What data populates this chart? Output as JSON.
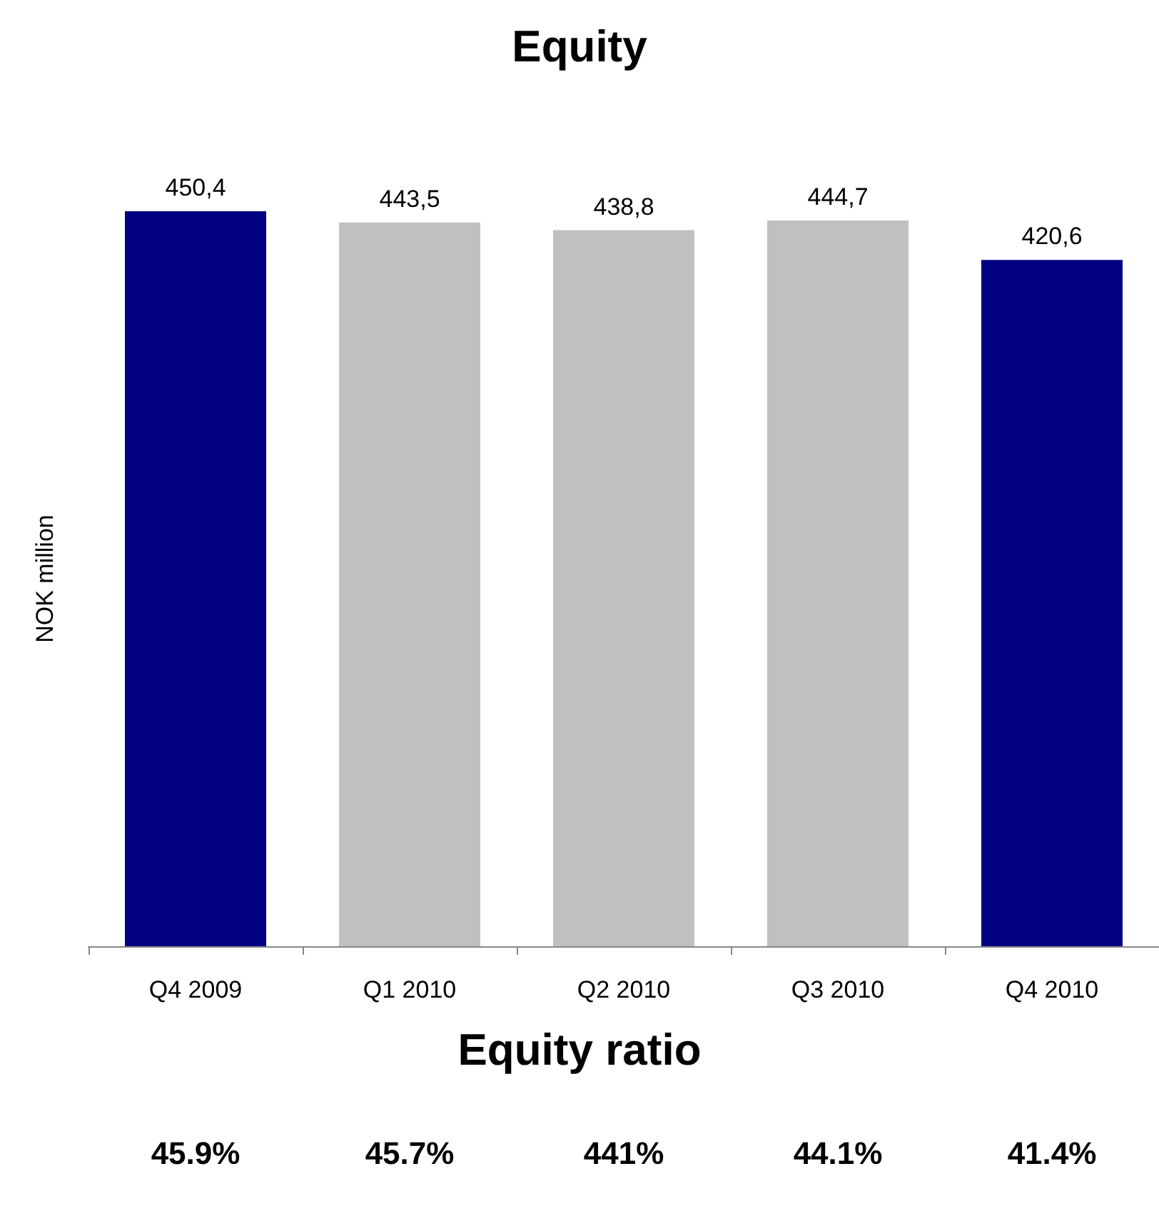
{
  "chart_data": {
    "type": "bar",
    "title": "Equity",
    "ylabel": "NOK million",
    "categories": [
      "Q4 2009",
      "Q1 2010",
      "Q2 2010",
      "Q3 2010",
      "Q4 2010"
    ],
    "values": [
      450.4,
      443.5,
      438.8,
      444.7,
      420.6
    ],
    "value_labels": [
      "450,4",
      "443,5",
      "438,8",
      "444,7",
      "420,6"
    ],
    "colors": [
      "#000080",
      "#c0c0c0",
      "#c0c0c0",
      "#c0c0c0",
      "#000080"
    ],
    "annotations": [
      "Equity ratio",
      "45.9%",
      "45.7%",
      "441%",
      "44.1%",
      "41.4%"
    ],
    "grid": false
  }
}
